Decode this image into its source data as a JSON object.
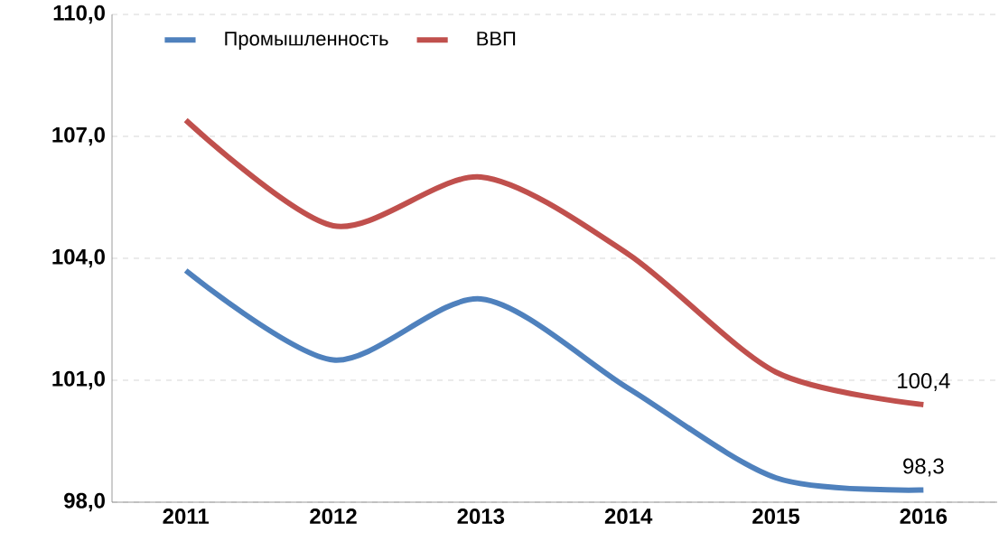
{
  "chart_data": {
    "type": "line",
    "categories": [
      "2011",
      "2012",
      "2013",
      "2014",
      "2015",
      "2016"
    ],
    "series": [
      {
        "name": "Промышленность",
        "color": "#4f81bd",
        "values": [
          103.7,
          101.5,
          103.0,
          100.8,
          98.6,
          98.3
        ],
        "value_labels": [
          null,
          null,
          null,
          null,
          null,
          "98,3"
        ]
      },
      {
        "name": "ВВП",
        "color": "#c0504d",
        "values": [
          107.4,
          104.8,
          106.0,
          104.1,
          101.2,
          100.4
        ],
        "value_labels": [
          null,
          null,
          null,
          null,
          null,
          "100,4"
        ]
      }
    ],
    "ylim": [
      98,
      110
    ],
    "yticks": [
      {
        "value": 98,
        "label": "98,0"
      },
      {
        "value": 101,
        "label": "101,0"
      },
      {
        "value": 104,
        "label": "104,0"
      },
      {
        "value": 107,
        "label": "107,0"
      },
      {
        "value": 110,
        "label": "110,0"
      }
    ],
    "grid": "y",
    "legend": "top",
    "marker": "none",
    "line_style": "solid"
  }
}
